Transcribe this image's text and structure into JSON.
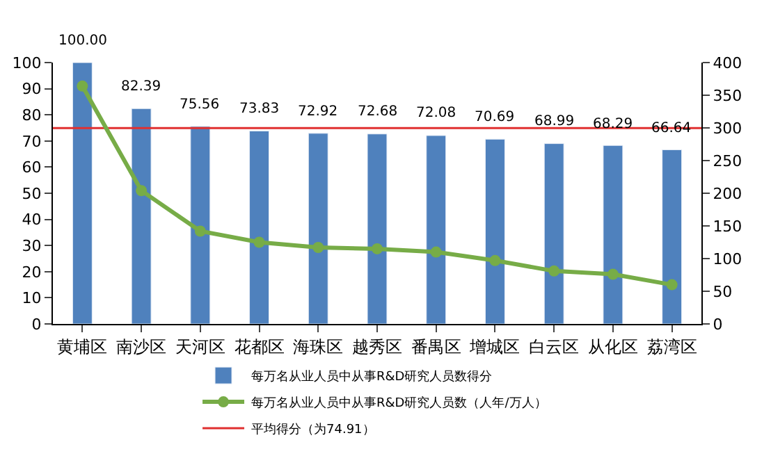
{
  "chart_data": {
    "type": "bar",
    "categories": [
      "黄埔区",
      "南沙区",
      "天河区",
      "花都区",
      "海珠区",
      "越秀区",
      "番禺区",
      "增城区",
      "白云区",
      "从化区",
      "荔湾区"
    ],
    "series": [
      {
        "name": "每万名从业人员中从事R&D研究人员数得分",
        "color": "#4f81bd",
        "values": [
          100.0,
          82.39,
          75.56,
          73.83,
          72.92,
          72.68,
          72.08,
          70.69,
          68.99,
          68.29,
          66.64
        ],
        "value_labels": [
          "100.00",
          "82.39",
          "75.56",
          "73.83",
          "72.92",
          "72.68",
          "72.08",
          "70.69",
          "68.99",
          "68.29",
          "66.64"
        ]
      },
      {
        "name": "每万名从业人员中从事R&D研究人员数（人年/万人）",
        "color": "#77ac47",
        "type": "line",
        "axis": "y2",
        "marker": "circle",
        "values": [
          364,
          204,
          142,
          125,
          117,
          115,
          110,
          97,
          81,
          76,
          60
        ]
      }
    ],
    "ref_lines": [
      {
        "axis": "y",
        "value": 74.91,
        "label": "平均得分（为74.91）",
        "color": "#e03030"
      }
    ],
    "ylim": [
      0,
      100
    ],
    "yticks": [
      0,
      10,
      20,
      30,
      40,
      50,
      60,
      70,
      80,
      90,
      100
    ],
    "y2lim": [
      0,
      400
    ],
    "y2ticks": [
      0,
      50,
      100,
      150,
      200,
      250,
      300,
      350,
      400
    ],
    "legend": "bottom"
  }
}
